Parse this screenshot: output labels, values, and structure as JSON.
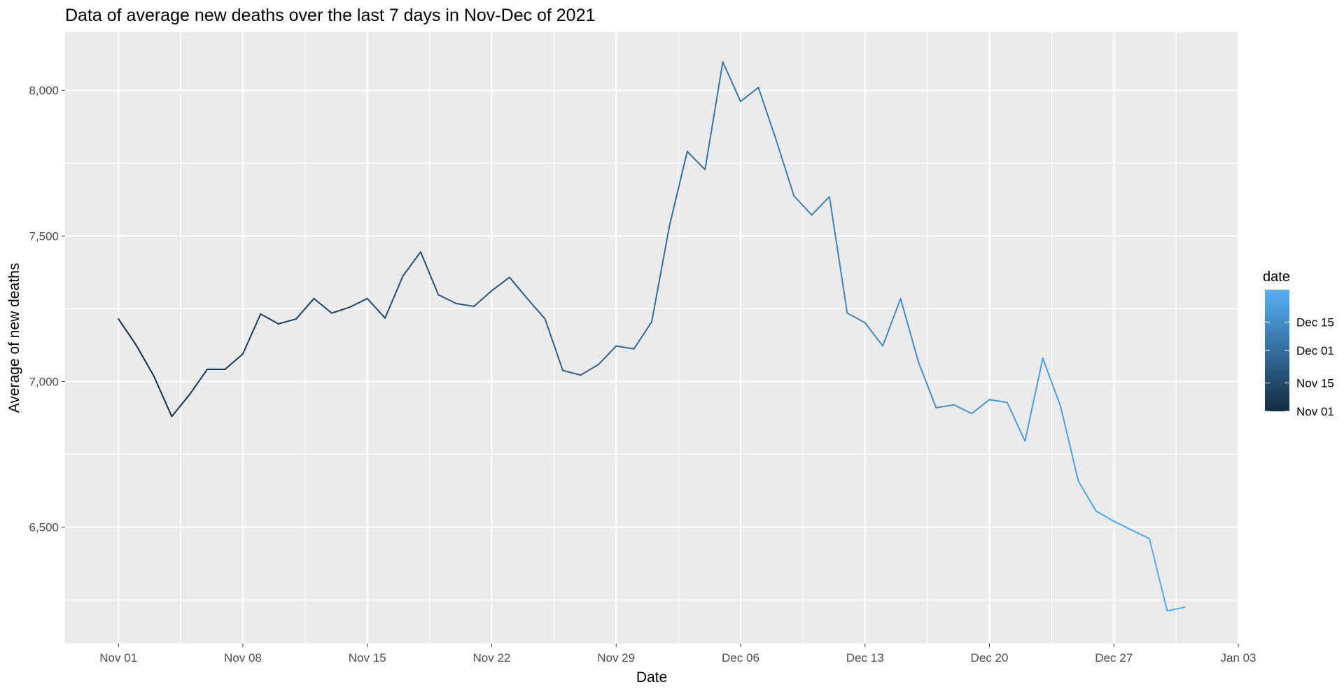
{
  "chart_data": {
    "type": "line",
    "title": "Data of average new deaths over the last 7 days in Nov-Dec of 2021",
    "xlabel": "Date",
    "ylabel": "Average of new deaths",
    "xlim": [
      "2021-10-29",
      "2022-01-03"
    ],
    "ylim": [
      6100,
      8200
    ],
    "x_ticks": [
      {
        "date": "2021-11-01",
        "label": "Nov 01"
      },
      {
        "date": "2021-11-08",
        "label": "Nov 08"
      },
      {
        "date": "2021-11-15",
        "label": "Nov 15"
      },
      {
        "date": "2021-11-22",
        "label": "Nov 22"
      },
      {
        "date": "2021-11-29",
        "label": "Nov 29"
      },
      {
        "date": "2021-12-06",
        "label": "Dec 06"
      },
      {
        "date": "2021-12-13",
        "label": "Dec 13"
      },
      {
        "date": "2021-12-20",
        "label": "Dec 20"
      },
      {
        "date": "2021-12-27",
        "label": "Dec 27"
      },
      {
        "date": "2022-01-03",
        "label": "Jan 03"
      }
    ],
    "y_ticks": [
      {
        "value": 6500,
        "label": "6,500"
      },
      {
        "value": 7000,
        "label": "7,000"
      },
      {
        "value": 7500,
        "label": "7,500"
      },
      {
        "value": 8000,
        "label": "8,000"
      }
    ],
    "grid": true,
    "background": "#EBEBEB",
    "legend": {
      "title": "date",
      "type": "colorbar",
      "position": "right",
      "color_low": "#132B43",
      "color_high": "#56B1F7",
      "range": [
        "2021-11-01",
        "2021-12-31"
      ],
      "ticks": [
        {
          "date": "2021-11-01",
          "label": "Nov 01"
        },
        {
          "date": "2021-11-15",
          "label": "Nov 15"
        },
        {
          "date": "2021-12-01",
          "label": "Dec 01"
        },
        {
          "date": "2021-12-15",
          "label": "Dec 15"
        }
      ]
    },
    "series": [
      {
        "x": [
          "2021-11-01",
          "2021-11-02",
          "2021-11-03",
          "2021-11-04",
          "2021-11-05",
          "2021-11-06",
          "2021-11-07",
          "2021-11-08",
          "2021-11-09",
          "2021-11-10",
          "2021-11-11",
          "2021-11-12",
          "2021-11-13",
          "2021-11-14",
          "2021-11-15",
          "2021-11-16",
          "2021-11-17",
          "2021-11-18",
          "2021-11-19",
          "2021-11-20",
          "2021-11-21",
          "2021-11-22",
          "2021-11-23",
          "2021-11-24",
          "2021-11-25",
          "2021-11-26",
          "2021-11-27",
          "2021-11-28",
          "2021-11-29",
          "2021-11-30",
          "2021-12-01",
          "2021-12-02",
          "2021-12-03",
          "2021-12-04",
          "2021-12-05",
          "2021-12-06",
          "2021-12-07",
          "2021-12-08",
          "2021-12-09",
          "2021-12-10",
          "2021-12-11",
          "2021-12-12",
          "2021-12-13",
          "2021-12-14",
          "2021-12-15",
          "2021-12-16",
          "2021-12-17",
          "2021-12-18",
          "2021-12-19",
          "2021-12-20",
          "2021-12-21",
          "2021-12-22",
          "2021-12-23",
          "2021-12-24",
          "2021-12-25",
          "2021-12-26",
          "2021-12-27",
          "2021-12-28",
          "2021-12-29",
          "2021-12-30",
          "2021-12-31"
        ],
        "values": [
          7215,
          7125,
          7018,
          6880,
          6955,
          7042,
          7042,
          7095,
          7232,
          7198,
          7215,
          7285,
          7235,
          7255,
          7285,
          7218,
          7362,
          7445,
          7298,
          7268,
          7258,
          7312,
          7358,
          7285,
          7215,
          7038,
          7022,
          7058,
          7122,
          7112,
          7205,
          7535,
          7790,
          7728,
          8098,
          7962,
          8010,
          7830,
          7638,
          7572,
          7635,
          7235,
          7202,
          7122,
          7285,
          7068,
          6910,
          6920,
          6890,
          6938,
          6928,
          6795,
          7080,
          6915,
          6658,
          6555,
          6520,
          6490,
          6460,
          6212,
          6225
        ]
      }
    ]
  }
}
